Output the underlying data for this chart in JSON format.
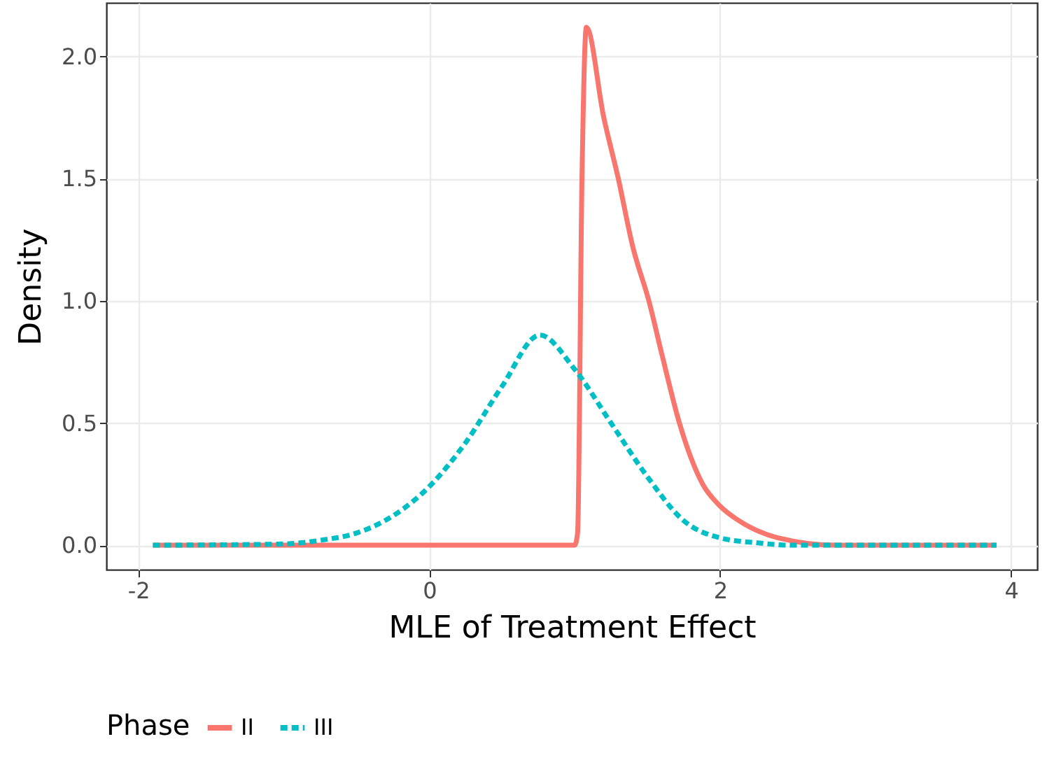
{
  "chart_data": {
    "type": "line",
    "xlabel": "MLE of Treatment Effect",
    "ylabel": "Density",
    "legend_title": "Phase",
    "xlim": [
      -2.22,
      4.18
    ],
    "ylim": [
      -0.1,
      2.22
    ],
    "xticks": [
      -2,
      0,
      2,
      4
    ],
    "yticks": [
      {
        "value": 0,
        "label": "0.0"
      },
      {
        "value": 0.5,
        "label": "0.5"
      },
      {
        "value": 1,
        "label": "1.0"
      },
      {
        "value": 1.5,
        "label": "1.5"
      },
      {
        "value": 2,
        "label": "2.0"
      }
    ],
    "grid": true,
    "legend": "bottom",
    "marker": "none",
    "series": [
      {
        "name": "II",
        "color": "#f8766d",
        "line_style": "solid",
        "x": [
          -1.9,
          1.0,
          1.02,
          1.05,
          1.08,
          1.2,
          1.3,
          1.4,
          1.51,
          1.6,
          1.72,
          1.88,
          2.0,
          2.13,
          2.4,
          2.8,
          3.9
        ],
        "values": [
          0,
          0,
          0.05,
          1.5,
          2.12,
          1.75,
          1.5,
          1.22,
          1.0,
          0.78,
          0.5,
          0.25,
          0.16,
          0.1,
          0.03,
          0,
          0
        ]
      },
      {
        "name": "III",
        "color": "#00bfc4",
        "line_style": "dashed",
        "x": [
          -1.9,
          -1.0,
          -0.75,
          -0.5,
          -0.25,
          0,
          0.25,
          0.5,
          0.76,
          1.0,
          1.25,
          1.5,
          1.75,
          2.0,
          2.25,
          2.5,
          3.9
        ],
        "values": [
          0,
          0.005,
          0.02,
          0.05,
          0.12,
          0.24,
          0.42,
          0.65,
          0.86,
          0.72,
          0.5,
          0.28,
          0.1,
          0.03,
          0.01,
          0,
          0
        ]
      }
    ]
  }
}
